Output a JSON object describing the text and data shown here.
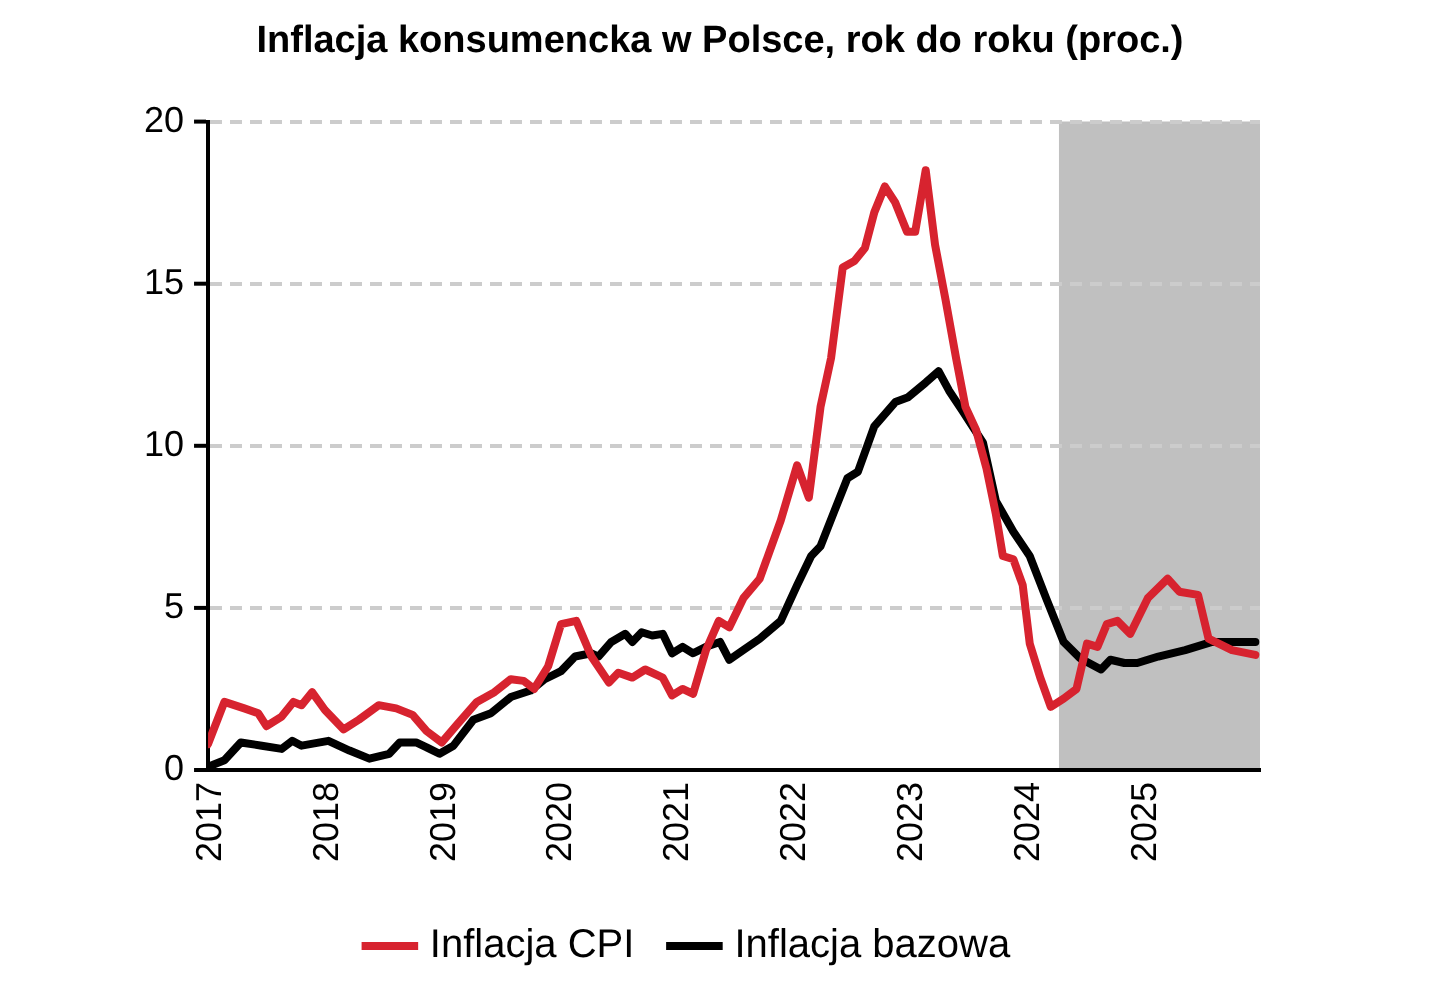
{
  "chart_data": {
    "type": "line",
    "title": "Inflacja konsumencka w Polsce, rok do roku (proc.)",
    "xlim": [
      2017,
      2026
    ],
    "xticks": [
      2017,
      2018,
      2019,
      2020,
      2021,
      2022,
      2023,
      2024,
      2025
    ],
    "ylim": [
      0,
      20
    ],
    "yticks": [
      0,
      5,
      10,
      15,
      20
    ],
    "grid": "y",
    "legend": "bottom",
    "marker": "none",
    "line_style": "solid",
    "bands": [
      {
        "axis": "x",
        "from": 2024.28,
        "to": 2026,
        "color": "#c0c0c0"
      }
    ],
    "series": [
      {
        "name": "Inflacja CPI",
        "color": "#d7232f",
        "x": [
          2017.0,
          2017.14,
          2017.31,
          2017.43,
          2017.5,
          2017.63,
          2017.73,
          2017.8,
          2017.89,
          2018.0,
          2018.16,
          2018.29,
          2018.46,
          2018.61,
          2018.75,
          2018.87,
          2019.0,
          2019.13,
          2019.3,
          2019.45,
          2019.59,
          2019.7,
          2019.79,
          2019.91,
          2020.02,
          2020.15,
          2020.28,
          2020.43,
          2020.51,
          2020.63,
          2020.74,
          2020.89,
          2020.97,
          2021.06,
          2021.15,
          2021.26,
          2021.37,
          2021.46,
          2021.58,
          2021.72,
          2021.9,
          2022.04,
          2022.14,
          2022.24,
          2022.33,
          2022.43,
          2022.53,
          2022.62,
          2022.7,
          2022.79,
          2022.88,
          2022.98,
          2023.05,
          2023.14,
          2023.22,
          2023.31,
          2023.4,
          2023.48,
          2023.57,
          2023.66,
          2023.74,
          2023.8,
          2023.89,
          2023.97,
          2024.03,
          2024.12,
          2024.21,
          2024.32,
          2024.43,
          2024.52,
          2024.61,
          2024.69,
          2024.78,
          2024.89,
          2025.04,
          2025.21,
          2025.31,
          2025.47,
          2025.56,
          2025.76,
          2025.96
        ],
        "values": [
          0.8,
          2.1,
          1.9,
          1.75,
          1.35,
          1.65,
          2.1,
          2.0,
          2.4,
          1.85,
          1.25,
          1.55,
          2.0,
          1.9,
          1.7,
          1.2,
          0.85,
          1.4,
          2.1,
          2.4,
          2.8,
          2.75,
          2.5,
          3.2,
          4.5,
          4.6,
          3.5,
          2.7,
          3.0,
          2.85,
          3.1,
          2.85,
          2.3,
          2.5,
          2.35,
          3.7,
          4.6,
          4.4,
          5.3,
          5.9,
          7.7,
          9.4,
          8.4,
          11.2,
          12.7,
          15.5,
          15.7,
          16.1,
          17.2,
          18.0,
          17.5,
          16.6,
          16.6,
          18.5,
          16.2,
          14.5,
          12.7,
          11.2,
          10.5,
          9.3,
          7.9,
          6.6,
          6.5,
          5.7,
          3.9,
          2.85,
          1.95,
          2.2,
          2.5,
          3.9,
          3.8,
          4.5,
          4.6,
          4.2,
          5.3,
          5.9,
          5.5,
          5.4,
          4.05,
          3.7,
          3.55
        ]
      },
      {
        "name": "Inflacja bazowa",
        "color": "#000000",
        "x": [
          2017.0,
          2017.14,
          2017.28,
          2017.46,
          2017.63,
          2017.72,
          2017.8,
          2018.03,
          2018.21,
          2018.38,
          2018.55,
          2018.64,
          2018.78,
          2018.87,
          2018.98,
          2019.1,
          2019.27,
          2019.42,
          2019.59,
          2019.76,
          2019.88,
          2020.02,
          2020.14,
          2020.28,
          2020.34,
          2020.45,
          2020.57,
          2020.63,
          2020.71,
          2020.8,
          2020.89,
          2020.97,
          2021.06,
          2021.15,
          2021.26,
          2021.38,
          2021.46,
          2021.58,
          2021.72,
          2021.9,
          2022.04,
          2022.16,
          2022.24,
          2022.36,
          2022.47,
          2022.56,
          2022.7,
          2022.88,
          2022.99,
          2023.14,
          2023.25,
          2023.34,
          2023.45,
          2023.63,
          2023.74,
          2023.89,
          2024.03,
          2024.17,
          2024.32,
          2024.46,
          2024.64,
          2024.72,
          2024.84,
          2024.95,
          2025.13,
          2025.36,
          2025.59,
          2025.82,
          2025.96
        ],
        "values": [
          0.1,
          0.3,
          0.85,
          0.75,
          0.65,
          0.9,
          0.75,
          0.9,
          0.6,
          0.35,
          0.5,
          0.85,
          0.85,
          0.7,
          0.5,
          0.75,
          1.55,
          1.75,
          2.25,
          2.45,
          2.8,
          3.05,
          3.5,
          3.6,
          3.5,
          3.95,
          4.2,
          3.95,
          4.25,
          4.15,
          4.2,
          3.6,
          3.8,
          3.6,
          3.8,
          3.95,
          3.4,
          3.7,
          4.05,
          4.6,
          5.7,
          6.6,
          6.9,
          8.0,
          9.0,
          9.2,
          10.6,
          11.35,
          11.5,
          11.95,
          12.3,
          11.7,
          11.1,
          10.1,
          8.3,
          7.35,
          6.6,
          5.3,
          3.95,
          3.45,
          3.1,
          3.4,
          3.3,
          3.3,
          3.5,
          3.7,
          3.95,
          3.95,
          3.95
        ]
      }
    ]
  }
}
